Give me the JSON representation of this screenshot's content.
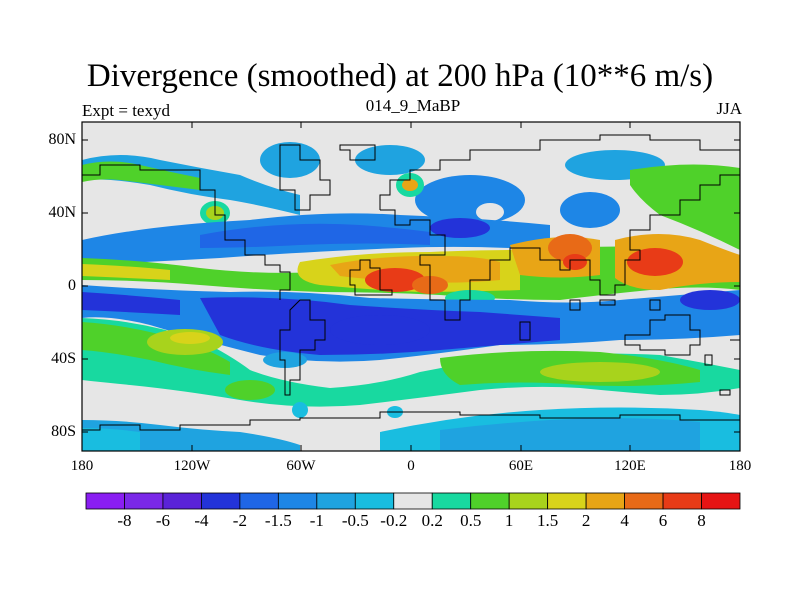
{
  "title": "Divergence (smoothed) at 200 hPa (10**6 m/s)",
  "left_label": "Expt = texyd",
  "center_label": "014_9_MaBP",
  "right_label": "JJA",
  "lat_ticks": [
    "80N",
    "40N",
    "0",
    "40S",
    "80S"
  ],
  "lon_ticks": [
    "180",
    "120W",
    "60W",
    "0",
    "60E",
    "120E",
    "180"
  ],
  "colorbar": {
    "labels": [
      "-8",
      "-6",
      "-4",
      "-2",
      "-1.5",
      "-1",
      "-0.5",
      "-0.2",
      "0.2",
      "0.5",
      "1",
      "1.5",
      "2",
      "4",
      "6",
      "8"
    ],
    "colors": [
      "#8a1ef2",
      "#7a28e8",
      "#5a23d8",
      "#2333d9",
      "#1f66e6",
      "#1e86e6",
      "#1fa3e0",
      "#19bde0",
      "#e6e6e6",
      "#18d9a0",
      "#4fd12a",
      "#a8d31c",
      "#d8d31a",
      "#e8a516",
      "#e86a17",
      "#e83b17",
      "#e61414"
    ]
  },
  "chart_data": {
    "type": "heatmap",
    "title": "Divergence (smoothed) at 200 hPa (10**6 m/s)",
    "subtitle": "014_9_MaBP",
    "experiment": "Expt = texyd",
    "season": "JJA",
    "x_axis": {
      "ticks": [
        "180",
        "120W",
        "60W",
        "0",
        "60E",
        "120E",
        "180"
      ],
      "range": [
        -180,
        180
      ]
    },
    "y_axis": {
      "ticks": [
        "80N",
        "40N",
        "0",
        "40S",
        "80S"
      ],
      "range": [
        -90,
        90
      ]
    },
    "contour_levels": [
      -8,
      -6,
      -4,
      -2,
      -1.5,
      -1,
      -0.5,
      -0.2,
      0.2,
      0.5,
      1,
      1.5,
      2,
      4,
      6,
      8
    ],
    "features": [
      {
        "region": "equatorial band 10S-35S, 150W-40E",
        "sign": "convergence",
        "min_approx": -4
      },
      {
        "region": "equatorial band 0-20N, 40W-160E",
        "sign": "divergence",
        "max_approx": 6
      },
      {
        "region": "South Asia / Tibet ~25N 90E",
        "sign": "divergence",
        "max_approx": 4
      },
      {
        "region": "western Pacific ~10N 140E",
        "sign": "divergence",
        "max_approx": 6
      },
      {
        "region": "southern midlatitudes 50S-65S",
        "sign": "divergence",
        "max_approx": 1
      },
      {
        "region": "Antarctic coast ~75S",
        "sign": "convergence",
        "min_approx": -1
      }
    ]
  }
}
